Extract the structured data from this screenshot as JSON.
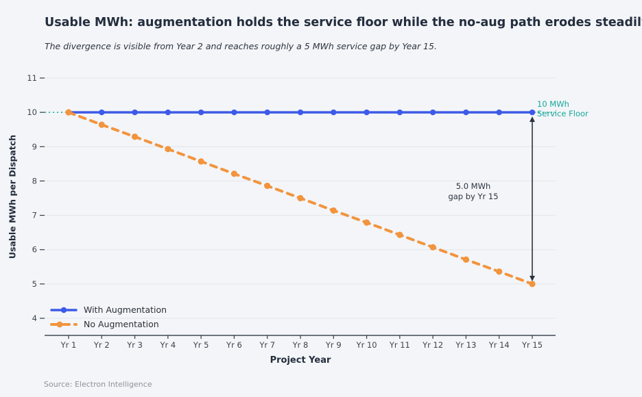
{
  "header": {
    "title": "Usable MWh: augmentation holds the service floor while the no-aug path erodes steadily",
    "subtitle": "The divergence is visible from Year 2 and reaches roughly a 5 MWh service gap by Year 15."
  },
  "chart_data": {
    "type": "line",
    "categories": [
      "Yr 1",
      "Yr 2",
      "Yr 3",
      "Yr 4",
      "Yr 5",
      "Yr 6",
      "Yr 7",
      "Yr 8",
      "Yr 9",
      "Yr 10",
      "Yr 11",
      "Yr 12",
      "Yr 13",
      "Yr 14",
      "Yr 15"
    ],
    "series": [
      {
        "name": "With Augmentation",
        "style": "solid",
        "color": "#3d5ae8",
        "values": [
          10,
          10,
          10,
          10,
          10,
          10,
          10,
          10,
          10,
          10,
          10,
          10,
          10,
          10,
          10
        ]
      },
      {
        "name": "No Augmentation",
        "style": "dashed",
        "color": "#f2943e",
        "values": [
          10.0,
          9.64,
          9.29,
          8.93,
          8.57,
          8.21,
          7.86,
          7.5,
          7.14,
          6.79,
          6.43,
          6.07,
          5.71,
          5.36,
          5.0
        ]
      }
    ],
    "title": "Usable MWh: augmentation holds the service floor while the no-aug path erodes steadily",
    "xlabel": "Project Year",
    "ylabel": "Usable MWh per Dispatch",
    "ylim": [
      4,
      11
    ],
    "yticks": [
      4,
      5,
      6,
      7,
      8,
      9,
      10,
      11
    ],
    "grid": true,
    "legend_position": "lower left",
    "reference_line": {
      "y": 10,
      "style": "dotted",
      "color": "#17a79a",
      "label": "10 MWh Service Floor"
    },
    "gap_arrow": {
      "category_index": 14,
      "from": 10,
      "to": 5,
      "label": "5.0 MWh gap by Yr 15"
    }
  },
  "annotations": {
    "service_floor": {
      "line1": "10 MWh",
      "line2": "Service Floor"
    },
    "gap": {
      "line1": "5.0 MWh",
      "line2": "gap by Yr 15"
    }
  },
  "footer": {
    "source": "Source: Electron Intelligence"
  },
  "colors": {
    "background": "#f3f5f8",
    "grid": "#e2e6eb",
    "spine": "#434a57",
    "tick": "#333a45",
    "arrow": "#2b3240",
    "blue": "#3d5ae8",
    "orange": "#f2943e",
    "teal": "#17a79a"
  }
}
